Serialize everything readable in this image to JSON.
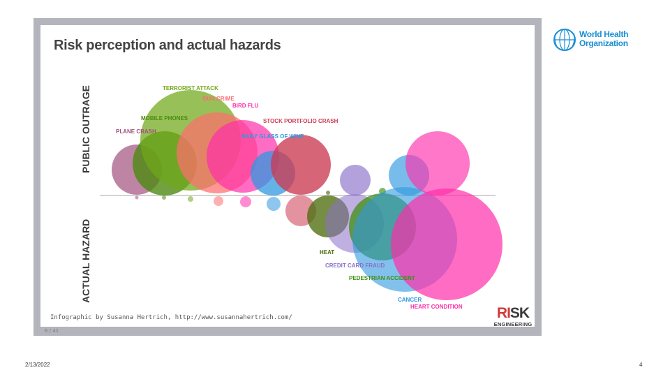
{
  "slide": {
    "title": "Risk perception and actual hazards",
    "axis_top": "PUBLIC OUTRAGE",
    "axis_bottom": "ACTUAL HAZARD",
    "credit": "Infographic by Susanna Hertrich, http://www.susannahertrich.com/",
    "page_indicator": "6 / 41",
    "brand_top_a": "RI",
    "brand_top_b": "S",
    "brand_top_c": "K",
    "brand_bottom": "ENGINEERING"
  },
  "who": {
    "line1": "World Health",
    "line2": "Organization",
    "color": "#1a8fd2"
  },
  "footer": {
    "date": "2/13/2022",
    "page": "4"
  },
  "colors": {
    "baseline": "#b9b9b9",
    "purple": "#a2507c",
    "olive": "#4e8a10",
    "salmon": "#ff6d6d",
    "pink": "#ff2eaa",
    "blue": "#2f98e0",
    "crimson": "#cc3a52",
    "lavender": "#8a6fc9"
  },
  "chart_data": {
    "type": "bubble",
    "title": "Risk perception and actual hazards",
    "upper_axis": "PUBLIC OUTRAGE",
    "lower_axis": "ACTUAL HAZARD",
    "hazards_above_line": [
      {
        "label": "PLANE CRASH",
        "color": "#a2507c"
      },
      {
        "label": "MOBILE PHONES",
        "color": "#4e8a10"
      },
      {
        "label": "TERRORIST ATTACK",
        "color": "#6fa817"
      },
      {
        "label": "GUN CRIME",
        "color": "#ff6d6d"
      },
      {
        "label": "BIRD FLU",
        "color": "#ff2eaa"
      },
      {
        "label": "DAILY GLASS OF WINE",
        "color": "#2f98e0"
      },
      {
        "label": "STOCK PORTFOLIO CRASH",
        "color": "#cc3a52"
      }
    ],
    "hazards_below_line": [
      {
        "label": "HEAT",
        "color": "#4e6e10"
      },
      {
        "label": "CREDIT CARD FRAUD",
        "color": "#8a6fc9"
      },
      {
        "label": "PEDESTRIAN ACCIDENT",
        "color": "#3f8f10"
      },
      {
        "label": "CANCER",
        "color": "#2f98e0"
      },
      {
        "label": "HEART CONDITION",
        "color": "#ff2eaa"
      }
    ]
  }
}
